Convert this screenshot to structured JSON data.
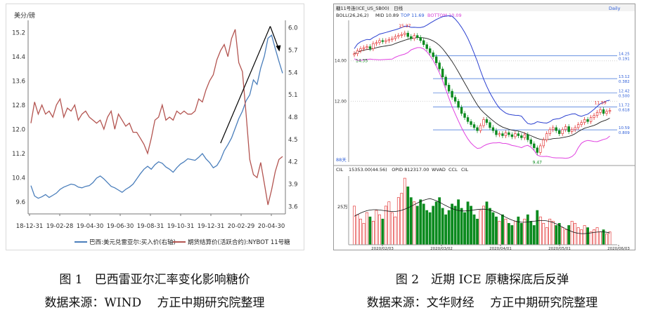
{
  "figure1": {
    "caption_title": "图 1　巴西雷亚尔汇率变化影响糖价",
    "caption_source": "数据来源：WIND　 方正中期研究院整理",
    "chart_data": {
      "type": "line",
      "ylabel_left": "美分/磅",
      "left_ticks": [
        9.6,
        10.4,
        11.2,
        12.0,
        12.8,
        13.6,
        14.4,
        15.2
      ],
      "right_ticks": [
        3.6,
        3.9,
        4.2,
        4.5,
        4.8,
        5.1,
        5.4,
        5.7,
        6.0
      ],
      "x_ticks": [
        "18-12-31",
        "19-02-28",
        "19-04-30",
        "19-06-30",
        "19-08-31",
        "19-10-31",
        "19-12-31",
        "20-02-29",
        "20-04-30"
      ],
      "series": [
        {
          "name": "巴西:美元兑雷亚尔:买入价(右轴)",
          "color": "#4a7ebb",
          "axis": "right",
          "values": [
            3.88,
            3.74,
            3.71,
            3.73,
            3.76,
            3.72,
            3.75,
            3.78,
            3.83,
            3.86,
            3.88,
            3.9,
            3.89,
            3.86,
            3.85,
            3.87,
            3.88,
            3.92,
            3.98,
            4.01,
            3.97,
            3.92,
            3.87,
            3.85,
            3.82,
            3.79,
            3.83,
            3.86,
            3.9,
            3.97,
            4.04,
            4.1,
            4.14,
            4.1,
            4.16,
            4.2,
            4.18,
            4.13,
            4.1,
            4.06,
            4.12,
            4.17,
            4.2,
            4.24,
            4.23,
            4.22,
            4.26,
            4.31,
            4.24,
            4.19,
            4.12,
            4.15,
            4.23,
            4.35,
            4.43,
            4.52,
            4.65,
            4.78,
            4.88,
            5.02,
            5.1,
            5.3,
            5.24,
            5.46,
            5.62,
            5.86,
            5.9,
            5.72,
            5.55,
            5.39
          ]
        },
        {
          "name": "期货结算价(活跃合约):NYBOT 11号糖",
          "color": "#b35450",
          "axis": "left",
          "values": [
            12.2,
            12.9,
            12.5,
            12.8,
            12.5,
            12.6,
            12.4,
            12.8,
            13.0,
            12.4,
            12.7,
            12.6,
            12.8,
            12.3,
            12.5,
            12.6,
            12.4,
            12.3,
            12.2,
            12.3,
            12.0,
            12.4,
            12.6,
            12.0,
            12.5,
            12.3,
            12.1,
            12.2,
            11.9,
            11.9,
            11.7,
            11.5,
            11.2,
            11.7,
            12.3,
            12.4,
            12.8,
            12.3,
            12.4,
            12.3,
            12.6,
            12.5,
            12.6,
            12.5,
            12.5,
            12.6,
            13.0,
            12.9,
            13.3,
            13.6,
            13.8,
            14.3,
            14.6,
            14.8,
            14.4,
            15.0,
            15.3,
            14.2,
            13.9,
            12.5,
            11.0,
            10.5,
            10.4,
            10.9,
            10.2,
            9.5,
            10.0,
            10.6,
            11.0,
            11.1
          ]
        }
      ],
      "trendline": true
    }
  },
  "figure2": {
    "caption_title": "图 2　近期 ICE 原糖探底后反弹",
    "caption_source": "数据来源：文华财经　 方正中期研究院整理",
    "window_title": "糖11号连(ICE_US_SB00)　日线",
    "window_right": "Daily",
    "boll_label": "BOLL(26,26,2)",
    "mid_label": "MID 10.89",
    "top_label": "TOP 11.69",
    "bottom_label": "BOTTOM 10.09",
    "vol_label": "15353.00(44.56)　OPID 812317.00",
    "vol_legend": [
      "WVAD",
      "CCL",
      "CIL"
    ],
    "vol_axis_label": "CIL",
    "vol_tick": "25万",
    "period_label": "88天",
    "chart_data": {
      "type": "candlestick",
      "y_ticks": [
        12.0,
        14.0
      ],
      "x_ticks": [
        "2020/02/03",
        "2020/03/02",
        "2020/04/01",
        "2020/05/01",
        "2020/06/03"
      ],
      "annotations": [
        "15.37",
        "9.47",
        "11.59",
        "14.35"
      ],
      "fib_levels": [
        {
          "price": "14.25",
          "pct": "0.191"
        },
        {
          "price": "13.12",
          "pct": "0.382"
        },
        {
          "price": "12.42",
          "pct": "0.500"
        },
        {
          "price": "11.72",
          "pct": "0.618"
        },
        {
          "price": "10.59",
          "pct": "0.809"
        }
      ],
      "closes": [
        14.35,
        14.5,
        14.6,
        14.65,
        14.7,
        14.6,
        14.85,
        14.9,
        15.0,
        14.95,
        15.0,
        15.05,
        15.1,
        15.2,
        15.25,
        15.3,
        15.37,
        15.2,
        15.1,
        15.25,
        15.15,
        15.0,
        14.8,
        14.6,
        14.4,
        14.2,
        13.9,
        13.6,
        13.2,
        12.8,
        12.5,
        12.2,
        12.0,
        11.7,
        11.4,
        11.2,
        11.0,
        10.85,
        10.7,
        10.55,
        10.8,
        11.1,
        10.95,
        10.7,
        10.55,
        10.35,
        10.4,
        10.3,
        10.45,
        10.35,
        10.25,
        10.4,
        10.3,
        10.2,
        10.35,
        10.1,
        9.9,
        9.7,
        9.47,
        9.8,
        10.1,
        10.4,
        10.6,
        10.7,
        10.55,
        10.4,
        10.6,
        10.75,
        10.5,
        10.6,
        10.7,
        10.85,
        10.95,
        11.1,
        11.0,
        11.2,
        11.3,
        11.45,
        11.59,
        11.4,
        11.5,
        11.55
      ],
      "volumes": [
        18,
        14,
        12,
        10,
        15,
        13,
        11,
        16,
        14,
        12,
        18,
        20,
        15,
        13,
        22,
        24,
        31,
        27,
        22,
        20,
        18,
        21,
        19,
        16,
        15,
        18,
        20,
        22,
        17,
        14,
        16,
        19,
        18,
        21,
        17,
        15,
        20,
        18,
        14,
        12,
        16,
        18,
        20,
        17,
        15,
        13,
        11,
        14,
        12,
        10,
        9,
        11,
        13,
        10,
        12,
        14,
        11,
        9,
        16,
        13,
        10,
        8,
        12,
        11,
        9,
        10,
        8,
        7,
        9,
        11,
        10,
        8,
        7,
        9,
        8,
        6,
        7,
        8,
        6,
        7,
        5,
        6
      ]
    }
  }
}
